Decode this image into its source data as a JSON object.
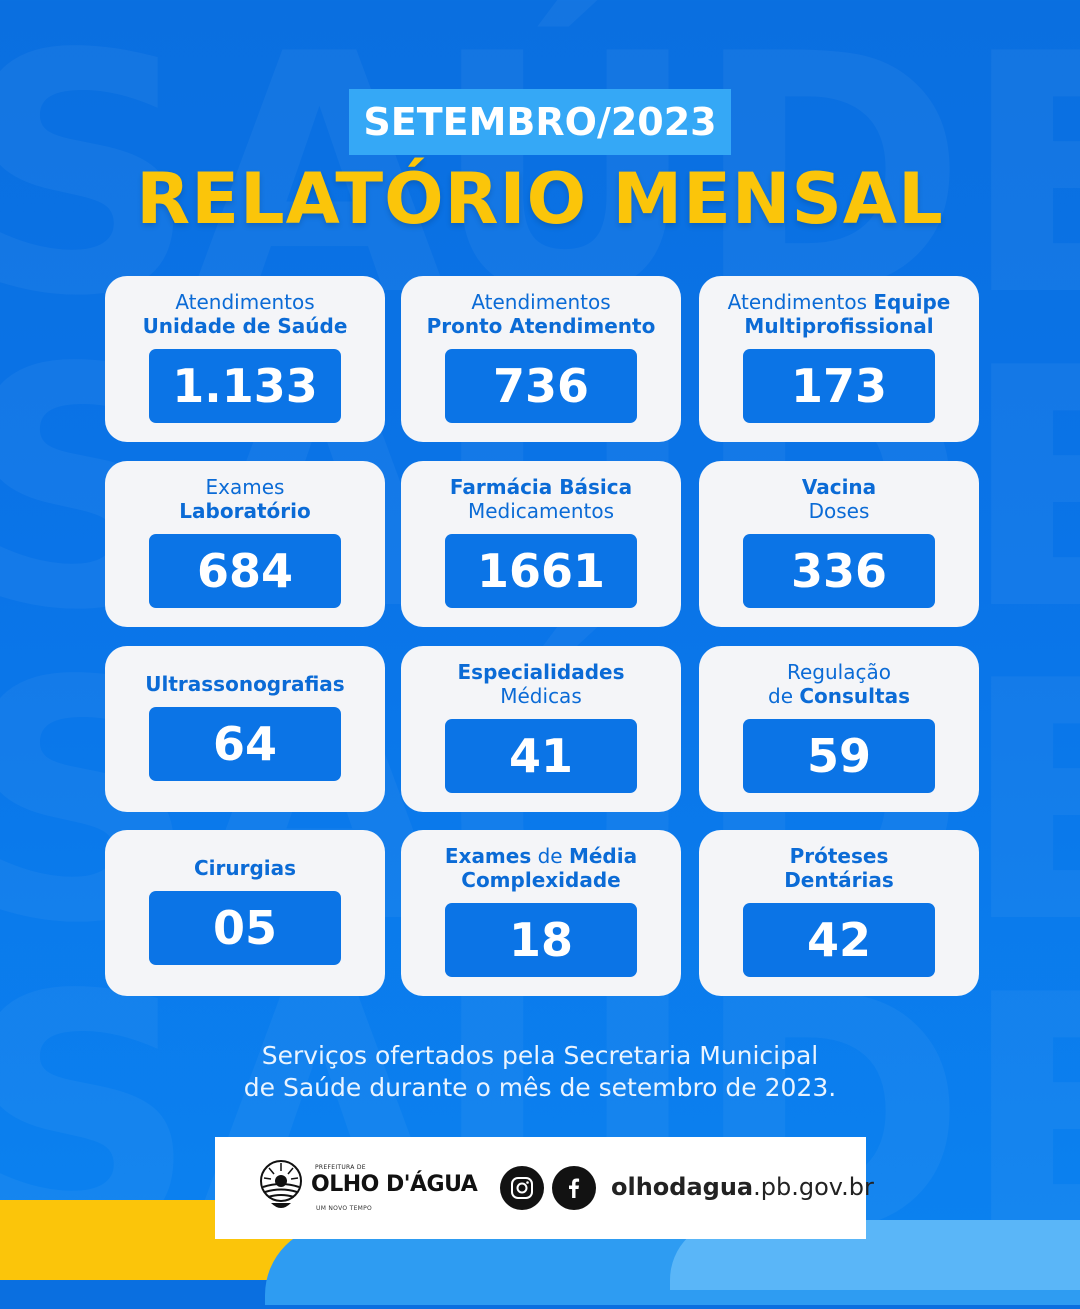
{
  "header": {
    "period": "SETEMBRO/2023",
    "title": "RELATÓRIO MENSAL"
  },
  "cards": [
    {
      "label_parts": [
        {
          "text": "Atendimentos",
          "bold": false,
          "br": true
        },
        {
          "text": "Unidade de Saúde",
          "bold": true
        }
      ],
      "value": "1.133"
    },
    {
      "label_parts": [
        {
          "text": "Atendimentos",
          "bold": false,
          "br": true
        },
        {
          "text": "Pronto Atendimento",
          "bold": true
        }
      ],
      "value": "736"
    },
    {
      "label_parts": [
        {
          "text": "Atendimentos ",
          "bold": false
        },
        {
          "text": "Equipe",
          "bold": true,
          "br": true
        },
        {
          "text": "Multiprofissional",
          "bold": true
        }
      ],
      "value": "173"
    },
    {
      "label_parts": [
        {
          "text": "Exames",
          "bold": false,
          "br": true
        },
        {
          "text": "Laboratório",
          "bold": true
        }
      ],
      "value": "684"
    },
    {
      "label_parts": [
        {
          "text": "Farmácia Básica",
          "bold": true,
          "br": true
        },
        {
          "text": "Medicamentos",
          "bold": false
        }
      ],
      "value": "1661"
    },
    {
      "label_parts": [
        {
          "text": "Vacina",
          "bold": true,
          "br": true
        },
        {
          "text": "Doses",
          "bold": false
        }
      ],
      "value": "336"
    },
    {
      "label_parts": [
        {
          "text": "Ultrassonografias",
          "bold": true
        }
      ],
      "value": "64"
    },
    {
      "label_parts": [
        {
          "text": "Especialidades",
          "bold": true,
          "br": true
        },
        {
          "text": "Médicas",
          "bold": false
        }
      ],
      "value": "41"
    },
    {
      "label_parts": [
        {
          "text": "Regulação",
          "bold": false,
          "br": true
        },
        {
          "text": "de ",
          "bold": false
        },
        {
          "text": "Consultas",
          "bold": true
        }
      ],
      "value": "59"
    },
    {
      "label_parts": [
        {
          "text": "Cirurgias",
          "bold": true
        }
      ],
      "value": "05"
    },
    {
      "label_parts": [
        {
          "text": "Exames",
          "bold": true
        },
        {
          "text": " de ",
          "bold": false
        },
        {
          "text": "Média",
          "bold": true,
          "br": true
        },
        {
          "text": "Complexidade",
          "bold": true
        }
      ],
      "value": "18"
    },
    {
      "label_parts": [
        {
          "text": "Próteses",
          "bold": true,
          "br": true
        },
        {
          "text": "Dentárias",
          "bold": true
        }
      ],
      "value": "42"
    }
  ],
  "note": {
    "line1": "Serviços ofertados pela Secretaria Municipal",
    "line2": "de Saúde durante o mês de setembro de 2023."
  },
  "footer": {
    "logo_prefix": "PREFEITURA DE",
    "logo_name": "OLHO D'ÁGUA",
    "logo_tagline": "UM NOVO TEMPO",
    "icons": [
      "instagram-icon",
      "facebook-icon"
    ],
    "site_bold": "olhodagua",
    "site_rest": ".pb.gov.br"
  },
  "colors": {
    "background": "#0a74e8",
    "accent_yellow": "#fbc50a",
    "card": "#f4f5f8",
    "value_box": "#0b74e6",
    "label_text": "#0b6bd6"
  }
}
